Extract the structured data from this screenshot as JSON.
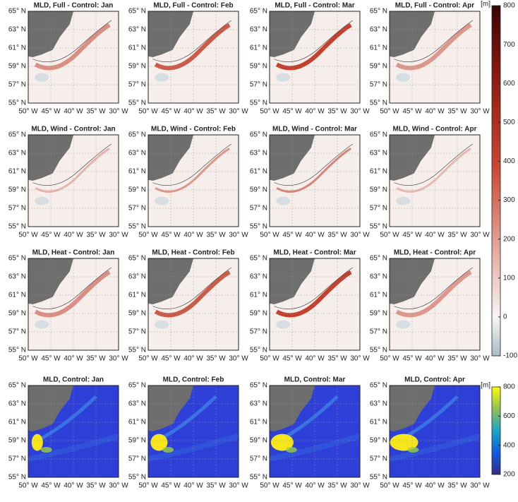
{
  "panels": [
    {
      "title": "MLD, Full - Control: Jan"
    },
    {
      "title": "MLD, Full - Control: Feb"
    },
    {
      "title": "MLD, Full - Control: Mar"
    },
    {
      "title": "MLD, Full - Control: Apr"
    },
    {
      "title": "MLD, Wind - Control: Jan"
    },
    {
      "title": "MLD, Wind - Control: Feb"
    },
    {
      "title": "MLD, Wind - Control: Mar"
    },
    {
      "title": "MLD, Wind - Control: Apr"
    },
    {
      "title": "MLD, Heat - Control: Jan"
    },
    {
      "title": "MLD, Heat - Control: Feb"
    },
    {
      "title": "MLD, Heat - Control: Mar"
    },
    {
      "title": "MLD, Heat - Control: Apr"
    },
    {
      "title": "MLD, Control: Jan"
    },
    {
      "title": "MLD, Control: Feb"
    },
    {
      "title": "MLD, Control: Mar"
    },
    {
      "title": "MLD, Control: Apr"
    }
  ],
  "latitude_range": [
    55,
    65
  ],
  "latitude_ticks": [
    {
      "value": 65,
      "label": "65° N"
    },
    {
      "value": 63,
      "label": "63° N"
    },
    {
      "value": 61,
      "label": "61° N"
    },
    {
      "value": 59,
      "label": "59° N"
    },
    {
      "value": 57,
      "label": "57° N"
    },
    {
      "value": 55,
      "label": "55° N"
    }
  ],
  "longitude_range": [
    -50,
    -30
  ],
  "longitude_ticks": [
    {
      "value": -50,
      "label": "50° W"
    },
    {
      "value": -45,
      "label": "45° W"
    },
    {
      "value": -40,
      "label": "40° W"
    },
    {
      "value": -35,
      "label": "35° W"
    },
    {
      "value": -30,
      "label": "30° W"
    }
  ],
  "colorbars": [
    {
      "unit": "[m]",
      "range": [
        -100,
        800
      ],
      "ticks": [
        800,
        700,
        600,
        500,
        400,
        300,
        200,
        100,
        0,
        -100
      ]
    },
    {
      "unit": "[m]",
      "range": [
        200,
        800
      ],
      "ticks": [
        800,
        600,
        400,
        200
      ]
    }
  ]
}
